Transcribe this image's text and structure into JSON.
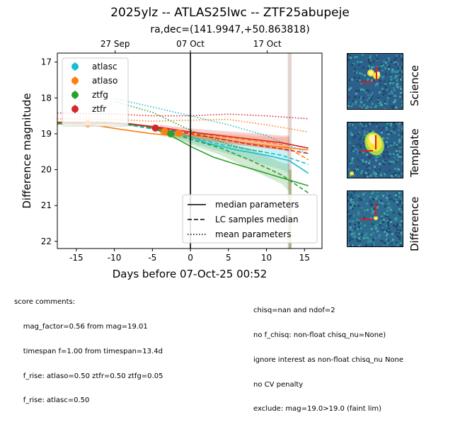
{
  "title": "2025ylz -- ATLAS25lwc -- ZTF25abupeje",
  "subtitle": "ra,dec=(141.9947,+50.863818)",
  "chart_data": {
    "type": "scatter",
    "xlabel": "Days before 07-Oct-25 00:52",
    "ylabel": "Difference magnitude",
    "xlim": [
      -17.5,
      17.3
    ],
    "ylim": [
      22.2,
      16.75
    ],
    "y_inverted": true,
    "x_ticks": [
      -15,
      -10,
      -5,
      0,
      5,
      10,
      15
    ],
    "y_ticks": [
      17,
      18,
      19,
      20,
      21,
      22
    ],
    "top_axis_ticks": [
      {
        "x": -9.9,
        "label": "27 Sep"
      },
      {
        "x": 0.0,
        "label": "07 Oct"
      },
      {
        "x": 10.1,
        "label": "17 Oct"
      }
    ],
    "reference_line_x": 0,
    "series": [
      {
        "name": "atlasc",
        "color": "#17becf",
        "points": [],
        "median": [
          [
            -17.5,
            18.7
          ],
          [
            -12,
            18.68
          ],
          [
            -8,
            18.72
          ],
          [
            -4,
            18.85
          ],
          [
            -1,
            19.0
          ],
          [
            2,
            19.25
          ],
          [
            6,
            19.45
          ],
          [
            10,
            19.6
          ],
          [
            13,
            19.75
          ],
          [
            15.5,
            20.1
          ]
        ],
        "samples_median": [
          [
            -17.5,
            18.72
          ],
          [
            -12,
            18.7
          ],
          [
            -8,
            18.76
          ],
          [
            -4,
            18.9
          ],
          [
            0,
            19.1
          ],
          [
            4,
            19.3
          ],
          [
            8,
            19.45
          ],
          [
            12,
            19.6
          ],
          [
            15.5,
            19.85
          ]
        ],
        "mean_params": [
          [
            -10,
            18.02
          ],
          [
            -5,
            18.25
          ],
          [
            0,
            18.5
          ],
          [
            5,
            18.75
          ],
          [
            10,
            19.05
          ],
          [
            15.5,
            19.55
          ]
        ],
        "band_upper": [
          [
            -4,
            18.8
          ],
          [
            0,
            19.0
          ],
          [
            4,
            19.15
          ],
          [
            8,
            19.3
          ],
          [
            12,
            19.4
          ],
          [
            13,
            19.45
          ]
        ],
        "band_lower": [
          [
            -4,
            18.95
          ],
          [
            0,
            19.25
          ],
          [
            4,
            19.5
          ],
          [
            8,
            19.75
          ],
          [
            12,
            20.0
          ],
          [
            13,
            20.1
          ]
        ]
      },
      {
        "name": "atlaso",
        "color": "#ff7f0e",
        "points": [
          [
            -13.5,
            18.72,
            0.05
          ],
          [
            -3.4,
            18.93,
            0.05
          ],
          [
            -1.5,
            18.98,
            0.05
          ]
        ],
        "median": [
          [
            -17.5,
            18.72
          ],
          [
            -13,
            18.75
          ],
          [
            -9,
            18.88
          ],
          [
            -5,
            19.0
          ],
          [
            -2,
            19.05
          ],
          [
            0,
            19.05
          ],
          [
            3,
            19.1
          ],
          [
            7,
            19.25
          ],
          [
            11,
            19.35
          ],
          [
            15.5,
            19.45
          ]
        ],
        "samples_median": [
          [
            -17.5,
            18.68
          ],
          [
            -12,
            18.7
          ],
          [
            -8,
            18.73
          ],
          [
            -4,
            18.86
          ],
          [
            0,
            18.98
          ],
          [
            4,
            19.08
          ],
          [
            8,
            19.18
          ],
          [
            12,
            19.3
          ],
          [
            15.5,
            19.72
          ]
        ],
        "mean_params": [
          [
            -17.5,
            18.58
          ],
          [
            -10,
            18.6
          ],
          [
            -5,
            18.65
          ],
          [
            0,
            18.62
          ],
          [
            5,
            18.6
          ],
          [
            10,
            18.75
          ],
          [
            15.5,
            18.95
          ]
        ],
        "band_upper": [
          [
            -4,
            18.85
          ],
          [
            0,
            18.95
          ],
          [
            4,
            19.0
          ],
          [
            8,
            19.05
          ],
          [
            12,
            19.1
          ],
          [
            13,
            19.1
          ]
        ],
        "band_lower": [
          [
            -4,
            19.05
          ],
          [
            0,
            19.15
          ],
          [
            4,
            19.25
          ],
          [
            8,
            19.35
          ],
          [
            12,
            19.45
          ],
          [
            13,
            19.5
          ]
        ]
      },
      {
        "name": "ztfg",
        "color": "#2ca02c",
        "points": [
          [
            -2.6,
            19.0,
            0.04
          ]
        ],
        "median": [
          [
            -17.5,
            18.72
          ],
          [
            -10,
            18.72
          ],
          [
            -6,
            18.78
          ],
          [
            -3,
            19.0
          ],
          [
            0,
            19.35
          ],
          [
            3,
            19.65
          ],
          [
            6,
            19.85
          ],
          [
            10,
            20.1
          ],
          [
            15.5,
            20.45
          ]
        ],
        "samples_median": [
          [
            -17.5,
            18.7
          ],
          [
            -12,
            18.68
          ],
          [
            -8,
            18.72
          ],
          [
            -4,
            18.88
          ],
          [
            0,
            19.15
          ],
          [
            4,
            19.4
          ],
          [
            8,
            19.75
          ],
          [
            12,
            20.15
          ],
          [
            15.5,
            20.65
          ]
        ],
        "mean_params": [
          [
            -10,
            18.1
          ],
          [
            -5,
            18.4
          ],
          [
            0,
            18.9
          ],
          [
            5,
            19.3
          ],
          [
            8,
            19.45
          ],
          [
            9.5,
            19.5
          ]
        ],
        "band_upper": [
          [
            -4,
            18.85
          ],
          [
            0,
            19.05
          ],
          [
            4,
            19.2
          ],
          [
            8,
            19.45
          ],
          [
            12,
            19.8
          ],
          [
            13,
            19.85
          ]
        ],
        "band_lower": [
          [
            -4,
            19.0
          ],
          [
            0,
            19.3
          ],
          [
            4,
            19.6
          ],
          [
            8,
            20.0
          ],
          [
            12,
            20.4
          ],
          [
            13,
            20.6
          ]
        ]
      },
      {
        "name": "ztfr",
        "color": "#d62728",
        "points": [
          [
            -4.6,
            18.84,
            0.06
          ]
        ],
        "median": [
          [
            -17.5,
            18.68
          ],
          [
            -12,
            18.68
          ],
          [
            -8,
            18.72
          ],
          [
            -4,
            18.82
          ],
          [
            0,
            18.95
          ],
          [
            4,
            19.05
          ],
          [
            8,
            19.15
          ],
          [
            12,
            19.25
          ],
          [
            15.5,
            19.4
          ]
        ],
        "samples_median": [
          [
            -17.5,
            18.68
          ],
          [
            -12,
            18.68
          ],
          [
            -8,
            18.72
          ],
          [
            -4,
            18.85
          ],
          [
            0,
            19.0
          ],
          [
            4,
            19.15
          ],
          [
            8,
            19.3
          ],
          [
            12,
            19.42
          ],
          [
            15.5,
            19.55
          ]
        ],
        "mean_params": [
          [
            -17.5,
            18.42
          ],
          [
            -10,
            18.45
          ],
          [
            -5,
            18.5
          ],
          [
            0,
            18.5
          ],
          [
            5,
            18.45
          ],
          [
            10,
            18.5
          ],
          [
            15.5,
            18.58
          ]
        ],
        "band_upper": [
          [
            -4,
            18.75
          ],
          [
            0,
            18.85
          ],
          [
            4,
            18.92
          ],
          [
            8,
            18.98
          ],
          [
            12,
            19.05
          ],
          [
            13,
            19.05
          ]
        ],
        "band_lower": [
          [
            -4,
            18.95
          ],
          [
            0,
            19.1
          ],
          [
            4,
            19.25
          ],
          [
            8,
            19.35
          ],
          [
            12,
            19.45
          ],
          [
            13,
            19.5
          ]
        ]
      }
    ],
    "legend_series_placement": "upper-left",
    "legend_styles": {
      "placement": "lower-right",
      "entries": [
        {
          "label": "median parameters",
          "style": "solid"
        },
        {
          "label": "LC samples median",
          "style": "dashed"
        },
        {
          "label": "mean parameters",
          "style": "dotted"
        }
      ]
    },
    "grid": false
  },
  "stamps": [
    {
      "label": "Science"
    },
    {
      "label": "Template"
    },
    {
      "label": "Difference"
    }
  ],
  "comments_left": [
    "score comments:",
    "    mag_factor=0.56 from mag=19.01",
    "    timespan f=1.00 from timespan=13.4d",
    "    f_rise: atlaso=0.50 ztfr=0.50 ztfg=0.05",
    "    f_rise: atlasc=0.50"
  ],
  "comments_right": [
    "chisq=nan and ndof=2",
    "no f_chisq: non-float chisq_nu=None)",
    "ignore interest as non-float chisq_nu None",
    "no CV penalty",
    "exclude: mag=19.0>19.0 (faint lim)"
  ]
}
